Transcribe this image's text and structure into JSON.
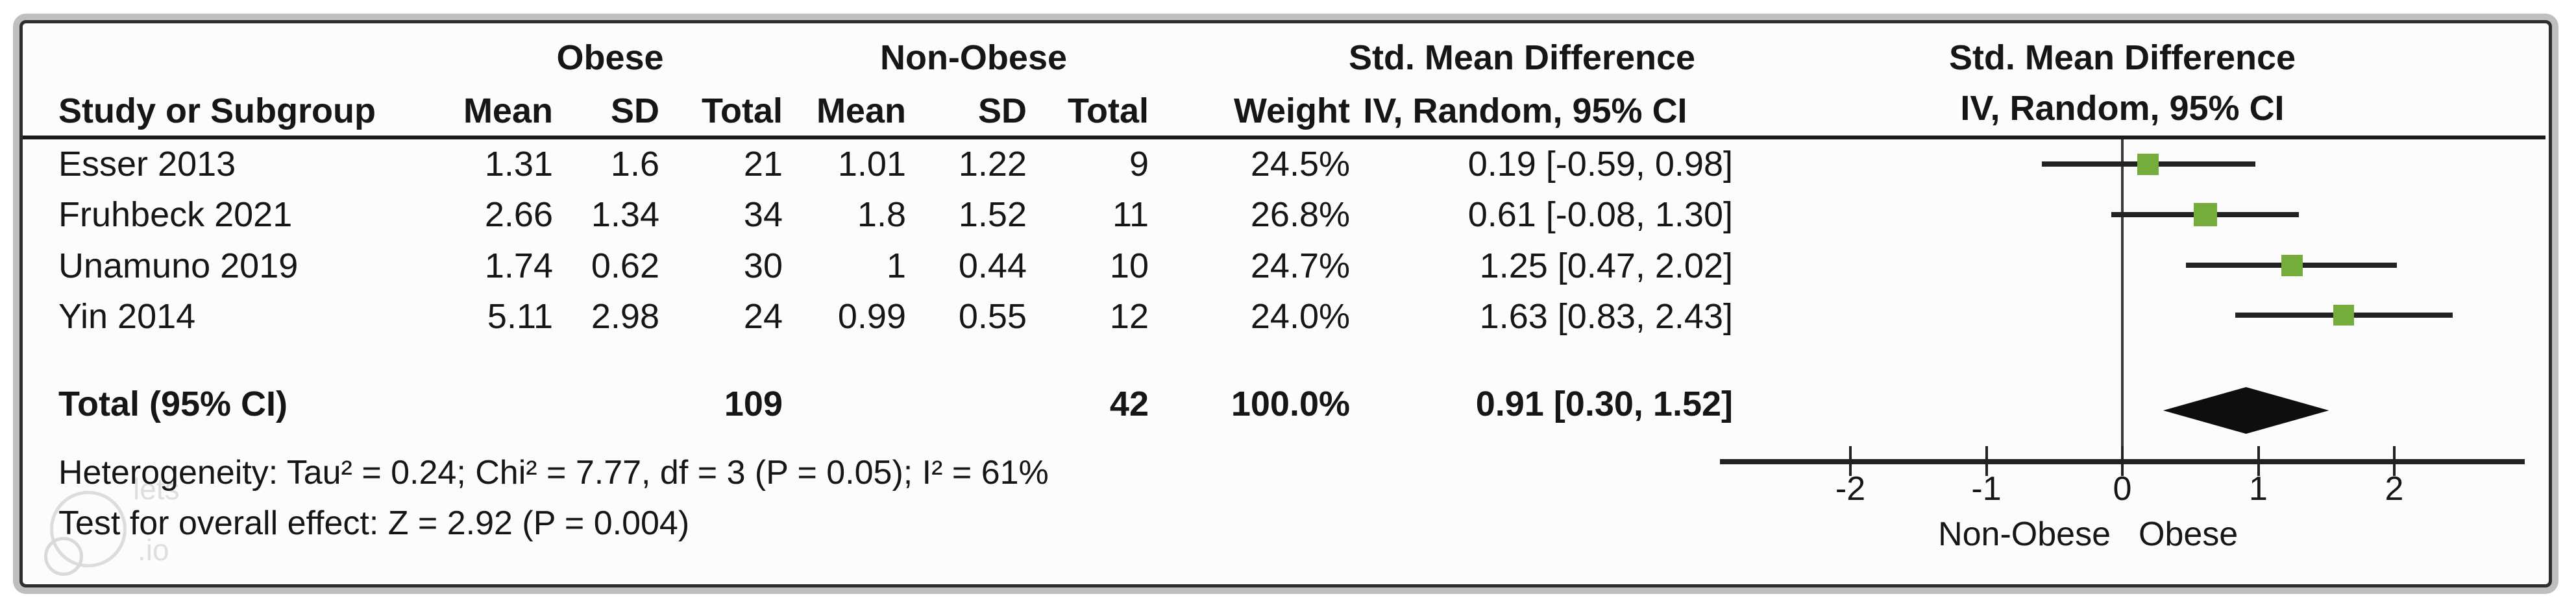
{
  "table": {
    "group_headers": {
      "obese": "Obese",
      "non_obese": "Non-Obese"
    },
    "col_headers": {
      "study": "Study or Subgroup",
      "mean": "Mean",
      "sd": "SD",
      "total": "Total",
      "mean2": "Mean",
      "sd2": "SD",
      "total2": "Total",
      "weight": "Weight",
      "smd_title": "Std. Mean Difference",
      "smd_sub": "IV, Random, 95% CI"
    },
    "rows": [
      {
        "study": "Esser 2013",
        "mean1": "1.31",
        "sd1": "1.6",
        "total1": "21",
        "mean2": "1.01",
        "sd2": "1.22",
        "total2": "9",
        "weight": "24.5%",
        "ci": "0.19 [-0.59, 0.98]"
      },
      {
        "study": "Fruhbeck 2021",
        "mean1": "2.66",
        "sd1": "1.34",
        "total1": "34",
        "mean2": "1.8",
        "sd2": "1.52",
        "total2": "11",
        "weight": "26.8%",
        "ci": "0.61 [-0.08, 1.30]"
      },
      {
        "study": "Unamuno 2019",
        "mean1": "1.74",
        "sd1": "0.62",
        "total1": "30",
        "mean2": "1",
        "sd2": "0.44",
        "total2": "10",
        "weight": "24.7%",
        "ci": "1.25 [0.47, 2.02]"
      },
      {
        "study": "Yin 2014",
        "mean1": "5.11",
        "sd1": "2.98",
        "total1": "24",
        "mean2": "0.99",
        "sd2": "0.55",
        "total2": "12",
        "weight": "24.0%",
        "ci": "1.63 [0.83, 2.43]"
      }
    ],
    "total_row": {
      "label": "Total (95% CI)",
      "total1": "109",
      "total2": "42",
      "weight": "100.0%",
      "ci": "0.91 [0.30, 1.52]"
    },
    "heterogeneity": "Heterogeneity: Tau² = 0.24; Chi² = 7.77, df = 3 (P = 0.05); I² = 61%",
    "overall_effect": "Test for overall effect: Z = 2.92 (P = 0.004)"
  },
  "plot": {
    "header_title": "Std. Mean Difference",
    "header_sub": "IV, Random, 95% CI"
  },
  "watermark": {
    "line1": "lets",
    "line2": ".io"
  },
  "colors": {
    "marker_green": "#74ad3c",
    "diamond_black": "#0e0e0e",
    "line_dark": "#222222"
  },
  "chart_data": {
    "type": "forest",
    "effect_measure": "Std. Mean Difference (IV, Random, 95% CI)",
    "title": "Std. Mean Difference",
    "subtitle": "IV, Random, 95% CI",
    "x_ticks": [
      -2,
      -1,
      0,
      1,
      2
    ],
    "x_range": [
      -3,
      2.95
    ],
    "direction_labels": {
      "left": "Non-Obese",
      "right": "Obese"
    },
    "studies": [
      {
        "name": "Esser 2013",
        "smd": 0.19,
        "ci_low": -0.59,
        "ci_high": 0.98,
        "weight_pct": 24.5
      },
      {
        "name": "Fruhbeck 2021",
        "smd": 0.61,
        "ci_low": -0.08,
        "ci_high": 1.3,
        "weight_pct": 26.8
      },
      {
        "name": "Unamuno 2019",
        "smd": 1.25,
        "ci_low": 0.47,
        "ci_high": 2.02,
        "weight_pct": 24.7
      },
      {
        "name": "Yin 2014",
        "smd": 1.63,
        "ci_low": 0.83,
        "ci_high": 2.43,
        "weight_pct": 24.0
      }
    ],
    "total": {
      "name": "Total (95% CI)",
      "smd": 0.91,
      "ci_low": 0.3,
      "ci_high": 1.52
    }
  }
}
